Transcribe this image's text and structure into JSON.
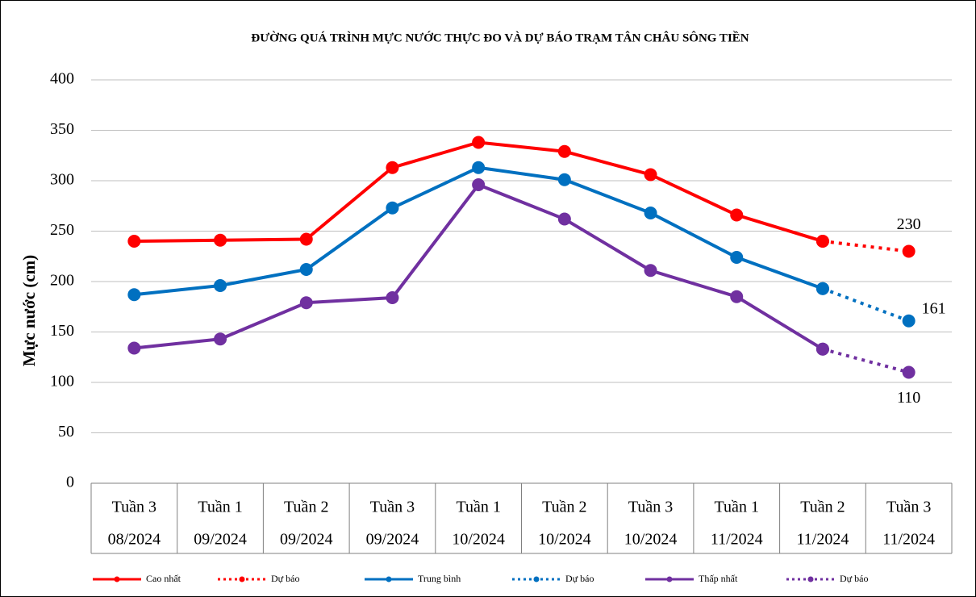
{
  "chart_data": {
    "type": "line",
    "title": "ĐƯỜNG QUÁ TRÌNH MỰC NƯỚC THỰC ĐO VÀ DỰ BÁO TRẠM TÂN CHÂU SÔNG TIỀN",
    "y_label": "Mực nước (cm)",
    "categories": [
      [
        "Tuần 3",
        "08/2024"
      ],
      [
        "Tuần 1",
        "09/2024"
      ],
      [
        "Tuần 2",
        "09/2024"
      ],
      [
        "Tuần 3",
        "09/2024"
      ],
      [
        "Tuần 1",
        "10/2024"
      ],
      [
        "Tuần 2",
        "10/2024"
      ],
      [
        "Tuần 3",
        "10/2024"
      ],
      [
        "Tuần 1",
        "11/2024"
      ],
      [
        "Tuần 2",
        "11/2024"
      ],
      [
        "Tuần 3",
        "11/2024"
      ]
    ],
    "series": [
      {
        "name": "Cao nhất",
        "color": "#ff0000",
        "dash": false,
        "values": [
          240,
          241,
          242,
          313,
          338,
          329,
          306,
          266,
          240,
          null
        ]
      },
      {
        "name": "Dự báo",
        "color": "#ff0000",
        "dash": true,
        "label_last": true,
        "values": [
          null,
          null,
          null,
          null,
          null,
          null,
          null,
          null,
          240,
          230
        ]
      },
      {
        "name": "Trung bình",
        "color": "#0070c0",
        "dash": false,
        "values": [
          187,
          196,
          212,
          273,
          313,
          301,
          268,
          224,
          193,
          null
        ]
      },
      {
        "name": "Dự báo",
        "color": "#0070c0",
        "dash": true,
        "label_last": true,
        "values": [
          null,
          null,
          null,
          null,
          null,
          null,
          null,
          null,
          193,
          161
        ]
      },
      {
        "name": "Thấp nhất",
        "color": "#7030a0",
        "dash": false,
        "values": [
          134,
          143,
          179,
          184,
          296,
          262,
          211,
          185,
          133,
          null
        ]
      },
      {
        "name": "Dự báo",
        "color": "#7030a0",
        "dash": true,
        "label_last": true,
        "values": [
          null,
          null,
          null,
          null,
          null,
          null,
          null,
          null,
          133,
          110
        ]
      }
    ],
    "ylim": [
      0,
      400
    ],
    "yticks": [
      0,
      50,
      100,
      150,
      200,
      250,
      300,
      350,
      400
    ],
    "grid": true
  }
}
